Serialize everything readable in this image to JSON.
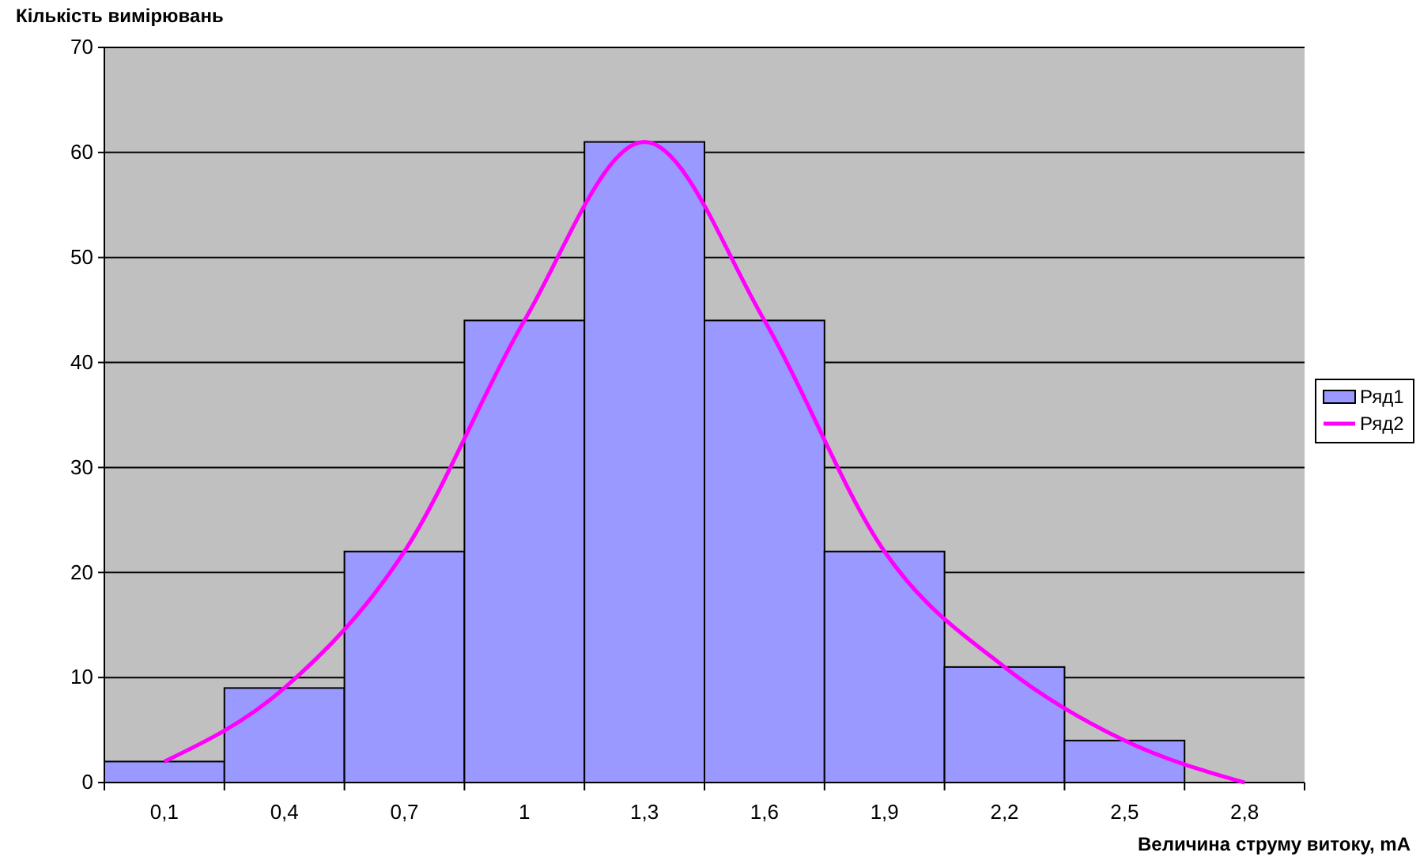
{
  "chart_data": {
    "type": "bar",
    "xlabel": "Величина струму витоку, mA",
    "ylabel": "Кількість вимірювань",
    "categories": [
      "0,1",
      "0,4",
      "0,7",
      "1",
      "1,3",
      "1,6",
      "1,9",
      "2,2",
      "2,5",
      "2,8"
    ],
    "series": [
      {
        "name": "Ряд1",
        "color": "#9999ff",
        "values": [
          2,
          9,
          22,
          44,
          61,
          44,
          22,
          11,
          4,
          null
        ]
      },
      {
        "name": "Ряд2",
        "type": "line",
        "color": "#ff00ff",
        "values": [
          2,
          9,
          22,
          44,
          61,
          44,
          22,
          11,
          4,
          0
        ]
      }
    ],
    "ylim": [
      0,
      70
    ],
    "yticks": [
      0,
      10,
      20,
      30,
      40,
      50,
      60,
      70
    ],
    "grid": "y",
    "legend": "right",
    "marker": "none"
  }
}
